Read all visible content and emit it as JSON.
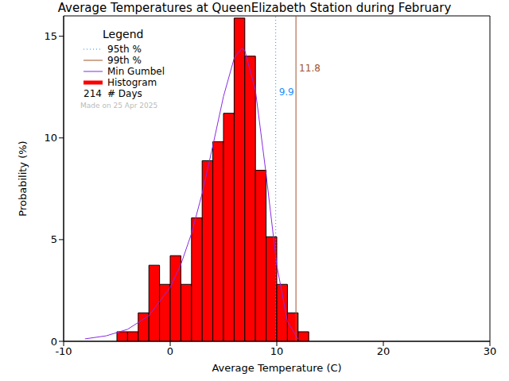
{
  "chart_data": {
    "type": "histogram",
    "title": "Average Temperatures at QueenElizabeth Station during February",
    "x_label": "Average Temperature (C)",
    "y_label": "Probability (%)",
    "name": "Histogram",
    "color": "#ff0000",
    "bins": [
      -5,
      -4,
      -3,
      -2,
      -1,
      0,
      1,
      2,
      3,
      4,
      5,
      6,
      7,
      8,
      9,
      10,
      11,
      12,
      13
    ],
    "values": [
      0.47,
      0.47,
      1.4,
      3.74,
      2.8,
      4.21,
      2.8,
      6.07,
      8.88,
      9.81,
      11.21,
      15.89,
      14.02,
      8.41,
      5.14,
      2.8,
      1.4,
      0.47
    ],
    "series": [
      {
        "name": "Min Gumbel",
        "type": "line",
        "color": "#8a2be2",
        "x": [
          -8,
          -6,
          -4,
          -2,
          0,
          1,
          2,
          3,
          4,
          5,
          6,
          6.7,
          7,
          8,
          9,
          10,
          11,
          12
        ],
        "values": [
          0.12,
          0.27,
          0.59,
          1.26,
          2.65,
          3.78,
          5.3,
          7.27,
          9.61,
          12.04,
          13.91,
          14.4,
          14.3,
          12.34,
          8.22,
          3.74,
          0.97,
          0.11
        ]
      }
    ],
    "reference_lines": [
      {
        "name": "95th %",
        "value": 9.9,
        "label": "9.9",
        "color": "#1e90ff",
        "line_style": "dotted"
      },
      {
        "name": "99th %",
        "value": 11.8,
        "label": "11.8",
        "color": "#a0522d",
        "line_style": "solid"
      }
    ],
    "legend_title": "Legend",
    "days": 214,
    "days_label": "# Days",
    "note": "Made on 25 Apr 2025",
    "legend": "top-left",
    "grid": false,
    "xlim": [
      -10,
      30
    ],
    "xticks": [
      -10,
      0,
      10,
      20,
      30
    ],
    "ylim": [
      0,
      16
    ],
    "yticks": [
      0,
      5,
      10,
      15
    ]
  }
}
